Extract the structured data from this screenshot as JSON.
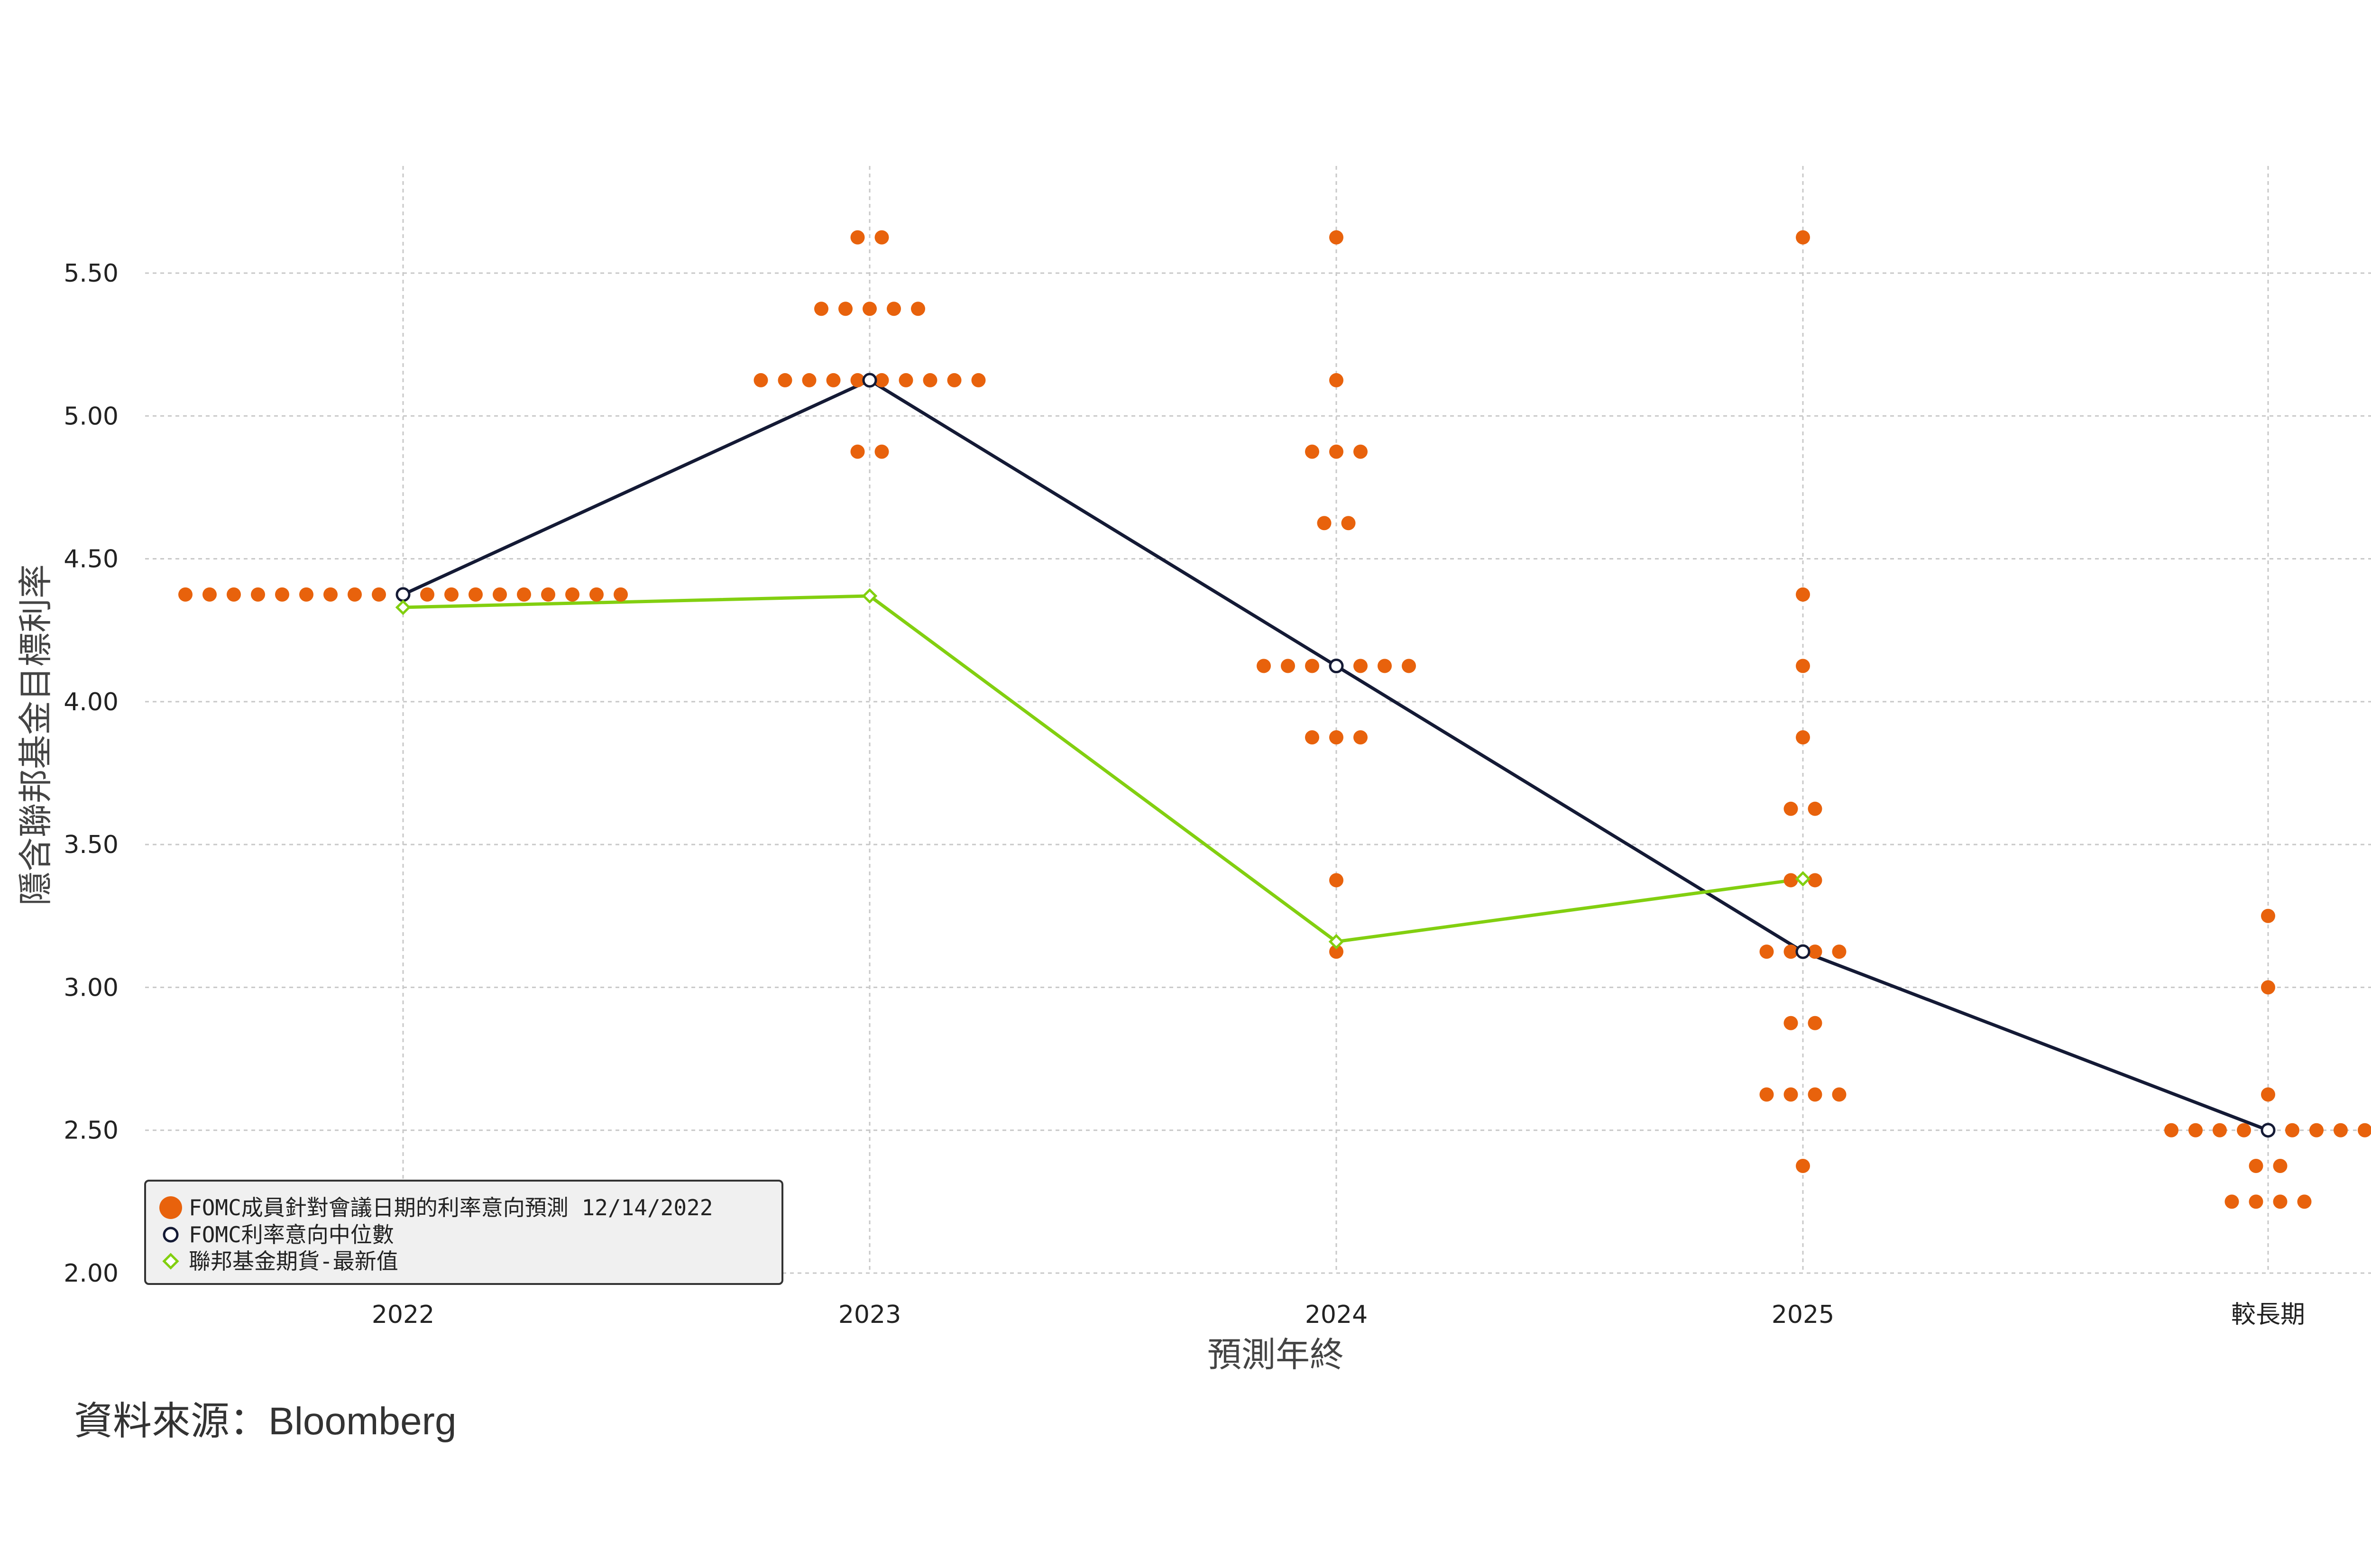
{
  "chart_data": {
    "type": "scatter",
    "title": "",
    "xlabel": "預測年終",
    "ylabel": "隱含聯邦基金目標利率",
    "categories": [
      "2022",
      "2023",
      "2024",
      "2025",
      "較長期"
    ],
    "ylim": [
      2.0,
      5.875
    ],
    "yticks": [
      "2.00",
      "2.50",
      "3.00",
      "3.50",
      "4.00",
      "4.50",
      "5.00",
      "5.50"
    ],
    "grid": true,
    "legend_position": "bottom-left",
    "dots": [
      {
        "x": "2022",
        "y": 4.375,
        "count": 19
      },
      {
        "x": "2023",
        "y": 5.625,
        "count": 2
      },
      {
        "x": "2023",
        "y": 5.375,
        "count": 5
      },
      {
        "x": "2023",
        "y": 5.125,
        "count": 10
      },
      {
        "x": "2023",
        "y": 4.875,
        "count": 2
      },
      {
        "x": "2024",
        "y": 5.625,
        "count": 1
      },
      {
        "x": "2024",
        "y": 5.125,
        "count": 1
      },
      {
        "x": "2024",
        "y": 4.875,
        "count": 3
      },
      {
        "x": "2024",
        "y": 4.625,
        "count": 2
      },
      {
        "x": "2024",
        "y": 4.125,
        "count": 7
      },
      {
        "x": "2024",
        "y": 3.875,
        "count": 3
      },
      {
        "x": "2024",
        "y": 3.375,
        "count": 1
      },
      {
        "x": "2024",
        "y": 3.125,
        "count": 1
      },
      {
        "x": "2025",
        "y": 5.625,
        "count": 1
      },
      {
        "x": "2025",
        "y": 4.375,
        "count": 1
      },
      {
        "x": "2025",
        "y": 4.125,
        "count": 1
      },
      {
        "x": "2025",
        "y": 3.875,
        "count": 1
      },
      {
        "x": "2025",
        "y": 3.625,
        "count": 2
      },
      {
        "x": "2025",
        "y": 3.375,
        "count": 2
      },
      {
        "x": "2025",
        "y": 3.125,
        "count": 4
      },
      {
        "x": "2025",
        "y": 2.875,
        "count": 2
      },
      {
        "x": "2025",
        "y": 2.625,
        "count": 4
      },
      {
        "x": "2025",
        "y": 2.375,
        "count": 1
      },
      {
        "x": "較長期",
        "y": 3.25,
        "count": 1
      },
      {
        "x": "較長期",
        "y": 3.0,
        "count": 1
      },
      {
        "x": "較長期",
        "y": 2.625,
        "count": 1
      },
      {
        "x": "較長期",
        "y": 2.5,
        "count": 9
      },
      {
        "x": "較長期",
        "y": 2.375,
        "count": 2
      },
      {
        "x": "較長期",
        "y": 2.25,
        "count": 4
      }
    ],
    "series": [
      {
        "name": "FOMC利率意向中位數",
        "values": [
          4.375,
          5.125,
          4.125,
          3.125,
          2.5
        ]
      },
      {
        "name": "聯邦基金期貨-最新值",
        "x": [
          "2022",
          "2023",
          "2024",
          "2025"
        ],
        "values": [
          4.33,
          4.37,
          3.16,
          3.38
        ]
      }
    ],
    "legend": [
      "FOMC成員針對會議日期的利率意向預測 12/14/2022",
      "FOMC利率意向中位數",
      "聯邦基金期貨-最新值"
    ],
    "colors": {
      "dots": "#E8620C",
      "median": "#141a35",
      "futures": "#82CF10",
      "grid": "#c8c8c8"
    }
  },
  "source": "資料來源：Bloomberg"
}
